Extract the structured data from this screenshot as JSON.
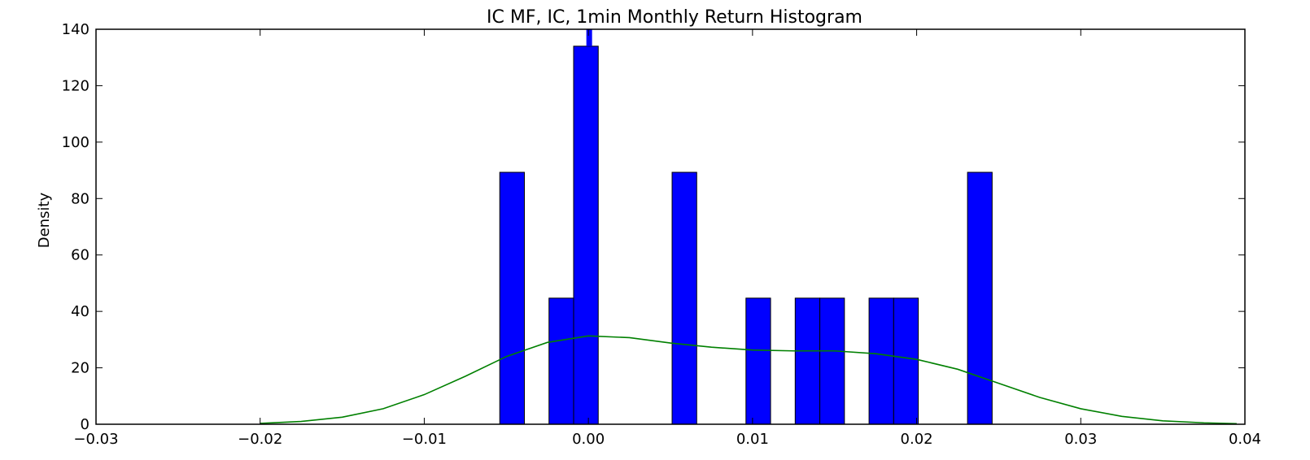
{
  "chart_data": {
    "type": "bar",
    "title": "IC MF, IC, 1min Monthly Return Histogram",
    "xlabel": "",
    "ylabel": "Density",
    "xlim": [
      -0.03,
      0.04
    ],
    "ylim": [
      0,
      140
    ],
    "xticks": [
      -0.03,
      -0.02,
      -0.01,
      0.0,
      0.01,
      0.02,
      0.03,
      0.04
    ],
    "xtick_labels": [
      "−0.03",
      "−0.02",
      "−0.01",
      "0.00",
      "0.01",
      "0.02",
      "0.03",
      "0.04"
    ],
    "yticks": [
      0,
      20,
      40,
      60,
      80,
      100,
      120,
      140
    ],
    "ytick_labels": [
      "0",
      "20",
      "40",
      "60",
      "80",
      "100",
      "120",
      "140"
    ],
    "grid": false,
    "bin_width": 0.0015,
    "bars": [
      {
        "x0": -0.0054,
        "height": 89.3
      },
      {
        "x0": -0.0024,
        "height": 44.7
      },
      {
        "x0": -0.0009,
        "height": 134.0
      },
      {
        "x0": 0.0051,
        "height": 89.3
      },
      {
        "x0": 0.0096,
        "height": 44.7
      },
      {
        "x0": 0.0126,
        "height": 44.7
      },
      {
        "x0": 0.0141,
        "height": 44.7
      },
      {
        "x0": 0.0171,
        "height": 44.7
      },
      {
        "x0": 0.0186,
        "height": 44.7
      },
      {
        "x0": 0.0231,
        "height": 89.3
      }
    ],
    "vertical_marker": {
      "x": 5e-05,
      "y_from": 134.0,
      "y_to": 140
    },
    "kde_curve": [
      [
        -0.02,
        0.3
      ],
      [
        -0.0175,
        1.0
      ],
      [
        -0.015,
        2.5
      ],
      [
        -0.0125,
        5.5
      ],
      [
        -0.01,
        10.5
      ],
      [
        -0.0075,
        17.0
      ],
      [
        -0.005,
        24.0
      ],
      [
        -0.0025,
        29.0
      ],
      [
        0.0,
        31.3
      ],
      [
        0.0025,
        30.7
      ],
      [
        0.005,
        28.8
      ],
      [
        0.0075,
        27.3
      ],
      [
        0.01,
        26.3
      ],
      [
        0.0125,
        26.0
      ],
      [
        0.015,
        26.0
      ],
      [
        0.0175,
        25.0
      ],
      [
        0.02,
        23.0
      ],
      [
        0.0225,
        19.5
      ],
      [
        0.025,
        14.5
      ],
      [
        0.0275,
        9.5
      ],
      [
        0.03,
        5.5
      ],
      [
        0.0325,
        2.8
      ],
      [
        0.035,
        1.2
      ],
      [
        0.0375,
        0.5
      ],
      [
        0.0395,
        0.2
      ]
    ],
    "colors": {
      "bar": "#0000ff",
      "bar_edge": "#000000",
      "kde": "#008000",
      "marker": "#0000ff"
    }
  }
}
